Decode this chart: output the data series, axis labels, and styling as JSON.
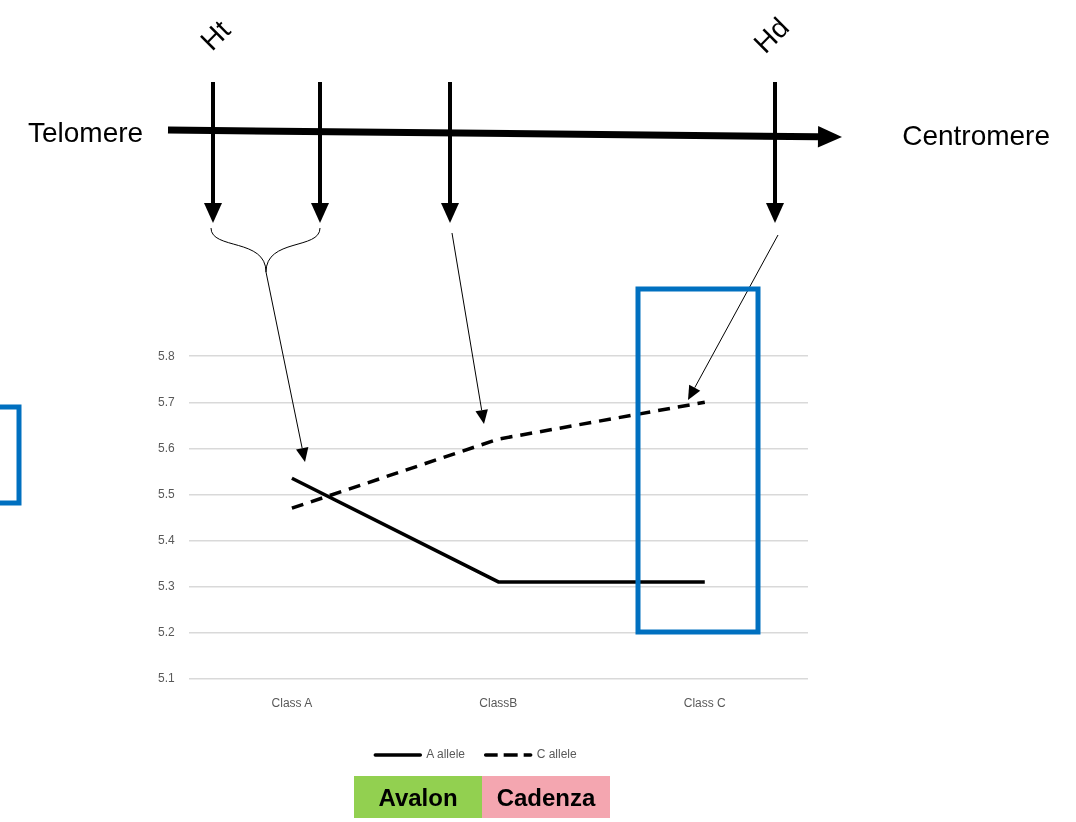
{
  "chart_data": {
    "type": "line",
    "categories": [
      "Class A",
      "ClassB",
      "Class C"
    ],
    "series": [
      {
        "name": "A allele",
        "color": "#000000",
        "line_style": "solid",
        "values": [
          5.535,
          5.31,
          5.31
        ]
      },
      {
        "name": "C allele",
        "color": "#000000",
        "line_style": "dashed",
        "values": [
          5.47,
          5.62,
          5.7
        ]
      }
    ],
    "ylim": [
      5.1,
      5.8
    ],
    "yticks": [
      5.1,
      5.2,
      5.3,
      5.4,
      5.5,
      5.6,
      5.7,
      5.8
    ],
    "grid": "y",
    "legend": "bottom",
    "marker": "none",
    "annotations": [
      "Telomere",
      "Centromere",
      "Ht",
      "Hd",
      "Avalon",
      "Cadenza"
    ]
  }
}
